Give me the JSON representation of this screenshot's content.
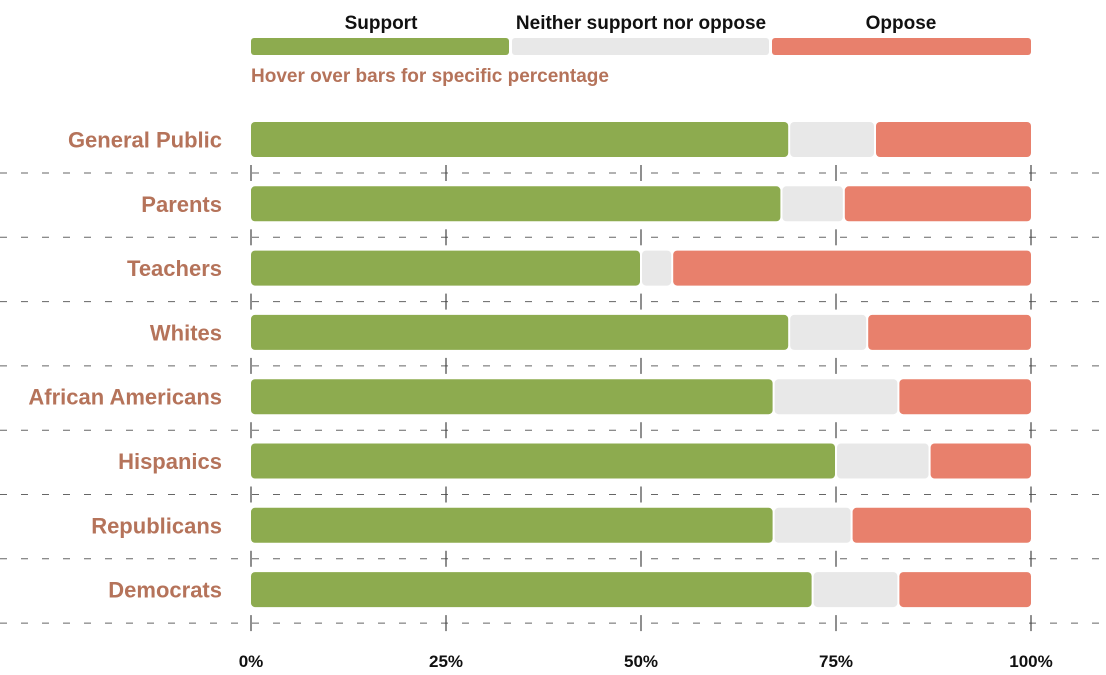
{
  "chart_data": {
    "type": "bar",
    "orientation": "horizontal",
    "stacked": true,
    "hint": "Hover over bars for specific percentage",
    "categories": [
      "General Public",
      "Parents",
      "Teachers",
      "Whites",
      "African Americans",
      "Hispanics",
      "Republicans",
      "Democrats"
    ],
    "series": [
      {
        "name": "Support",
        "color": "#8dab4f",
        "values": [
          69,
          68,
          50,
          69,
          67,
          75,
          67,
          72
        ]
      },
      {
        "name": "Neither support nor oppose",
        "color": "#e8e8e8",
        "values": [
          11,
          8,
          4,
          10,
          16,
          12,
          10,
          11
        ]
      },
      {
        "name": "Oppose",
        "color": "#e8806c",
        "values": [
          20,
          24,
          46,
          21,
          17,
          13,
          23,
          17
        ]
      }
    ],
    "x_ticks": [
      "0%",
      "25%",
      "50%",
      "75%",
      "100%"
    ],
    "xlim": [
      0,
      100
    ],
    "legend_position": "top",
    "grid": "dashed horizontal separators with vertical ticks",
    "label_color": "#b5735a"
  }
}
